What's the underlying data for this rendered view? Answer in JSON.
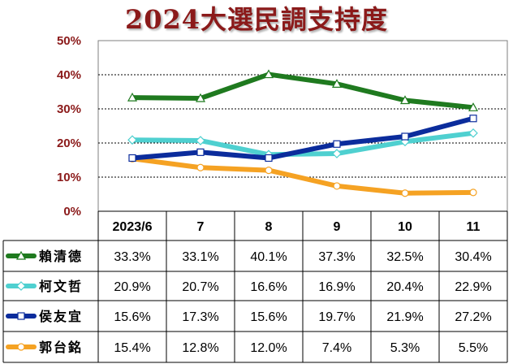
{
  "title": "2024大選民調支持度",
  "chart_data": {
    "type": "line",
    "title": "2024大選民調支持度",
    "categories": [
      "2023/6",
      "7",
      "8",
      "9",
      "10",
      "11"
    ],
    "yticks": [
      "0%",
      "10%",
      "20%",
      "30%",
      "40%",
      "50%"
    ],
    "ylim": [
      0,
      50
    ],
    "grid": true,
    "legend": "data-table",
    "series": [
      {
        "name": "賴清德",
        "color": "#1f7a1f",
        "marker": "triangle",
        "values": [
          33.3,
          33.1,
          40.1,
          37.3,
          32.5,
          30.4
        ],
        "labels": [
          "33.3%",
          "33.1%",
          "40.1%",
          "37.3%",
          "32.5%",
          "30.4%"
        ]
      },
      {
        "name": "柯文哲",
        "color": "#4fd0d0",
        "marker": "diamond",
        "values": [
          20.9,
          20.7,
          16.6,
          16.9,
          20.4,
          22.9
        ],
        "labels": [
          "20.9%",
          "20.7%",
          "16.6%",
          "16.9%",
          "20.4%",
          "22.9%"
        ]
      },
      {
        "name": "侯友宜",
        "color": "#0b2c9c",
        "marker": "square",
        "values": [
          15.6,
          17.3,
          15.6,
          19.7,
          21.9,
          27.2
        ],
        "labels": [
          "15.6%",
          "17.3%",
          "15.6%",
          "19.7%",
          "21.9%",
          "27.2%"
        ]
      },
      {
        "name": "郭台銘",
        "color": "#f5a223",
        "marker": "circle",
        "values": [
          15.4,
          12.8,
          12.0,
          7.4,
          5.3,
          5.5
        ],
        "labels": [
          "15.4%",
          "12.8%",
          "12.0%",
          "7.4%",
          "5.3%",
          "5.5%"
        ]
      }
    ]
  }
}
